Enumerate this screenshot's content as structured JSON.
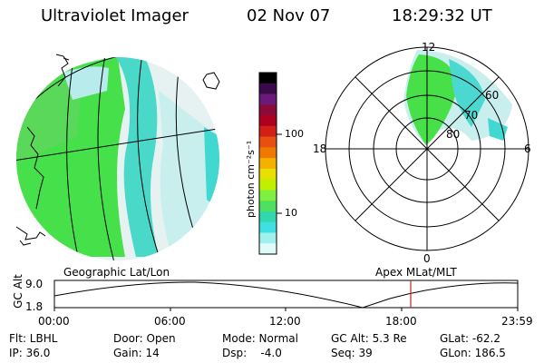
{
  "header": {
    "title": "Ultraviolet Imager",
    "date": "02 Nov 07",
    "time": "18:29:32 UT"
  },
  "colorbar": {
    "unit_label": "photon cm⁻²s⁻¹",
    "ticks": [
      "100",
      "10"
    ],
    "colors": [
      "#000000",
      "#3a0a4a",
      "#6a1a7a",
      "#8a0a3a",
      "#b00020",
      "#d22018",
      "#e85010",
      "#f07a00",
      "#f5b000",
      "#e8e000",
      "#c0f000",
      "#80f040",
      "#50e060",
      "#30d8b0",
      "#40e0e0",
      "#a0f0f0",
      "#e0fafa"
    ]
  },
  "geo_map": {
    "caption": "Geographic Lat/Lon"
  },
  "polar_map": {
    "caption": "Apex MLat/MLT",
    "mlt_labels": {
      "top": "12",
      "bottom": "0",
      "left": "18",
      "right": "6"
    },
    "lat_labels": [
      "60",
      "70",
      "80"
    ]
  },
  "altitude_plot": {
    "ylabel": "GC Alt",
    "yticks": [
      "9.0",
      "1.8"
    ],
    "xticks": [
      "00:00",
      "06:00",
      "12:00",
      "18:00",
      "23:59"
    ],
    "marker_color": "#cc2020"
  },
  "footer": {
    "row1": [
      "Flt: LBHL",
      "Door: Open",
      "Mode: Normal",
      "GC Alt: 5.3 Re",
      "GLat: -62.2"
    ],
    "row2": [
      "IP: 36.0",
      "Gain: 14",
      "Dsp:    -4.0",
      "Seq: 39",
      "GLon: 186.5"
    ]
  }
}
